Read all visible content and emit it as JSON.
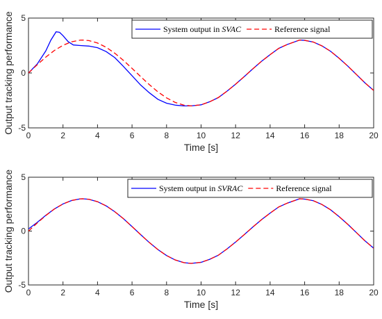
{
  "chart_data": [
    {
      "type": "line",
      "xlabel": "Time [s]",
      "ylabel": "Output tracking performance",
      "xlim": [
        0,
        20
      ],
      "ylim": [
        -5,
        5
      ],
      "xticks": [
        "0",
        "2",
        "4",
        "6",
        "8",
        "10",
        "12",
        "14",
        "16",
        "18",
        "20"
      ],
      "yticks": [
        "-5",
        "0",
        "5"
      ],
      "grid": false,
      "legend_position": "top-right",
      "series": [
        {
          "name": "System output in SVAC",
          "legend_prefix": "System output in ",
          "legend_italic": "SVAC",
          "color": "#0000ff",
          "style": "solid",
          "x": [
            0,
            0.5,
            1.0,
            1.3,
            1.6,
            1.8,
            2.0,
            2.3,
            2.6,
            3.0,
            3.5,
            4.0,
            4.5,
            5.0,
            5.5,
            6.0,
            6.5,
            7.0,
            7.5,
            8.0,
            8.5,
            9.0,
            9.42,
            10.0,
            10.5,
            11.0,
            11.5,
            12.0,
            12.5,
            13.0,
            13.5,
            14.0,
            14.5,
            15.0,
            15.71,
            16.0,
            16.5,
            17.0,
            17.5,
            18.0,
            18.5,
            19.0,
            19.5,
            20.0
          ],
          "y": [
            0.0,
            0.8,
            2.0,
            3.0,
            3.75,
            3.7,
            3.4,
            2.85,
            2.55,
            2.5,
            2.45,
            2.3,
            1.95,
            1.4,
            0.6,
            -0.25,
            -1.1,
            -1.8,
            -2.4,
            -2.75,
            -2.93,
            -3.0,
            -3.0,
            -2.9,
            -2.62,
            -2.24,
            -1.66,
            -1.02,
            -0.33,
            0.38,
            1.06,
            1.67,
            2.24,
            2.6,
            3.0,
            2.97,
            2.82,
            2.47,
            1.98,
            1.34,
            0.63,
            -0.14,
            -0.91,
            -1.59
          ]
        },
        {
          "name": "Reference signal",
          "color": "#ff0000",
          "style": "dashed",
          "x": [
            0,
            0.5,
            1.0,
            1.5,
            2.0,
            2.5,
            3.0,
            3.14,
            3.5,
            4.0,
            4.5,
            5.0,
            5.5,
            6.0,
            6.5,
            7.0,
            7.5,
            8.0,
            8.5,
            9.0,
            9.42,
            10.0,
            10.5,
            11.0,
            11.5,
            12.0,
            12.5,
            13.0,
            13.5,
            14.0,
            14.5,
            15.0,
            15.71,
            16.0,
            16.5,
            17.0,
            17.5,
            18.0,
            18.5,
            19.0,
            19.5,
            20.0
          ],
          "y": [
            0.0,
            0.74,
            1.44,
            2.05,
            2.52,
            2.84,
            2.99,
            3.0,
            2.95,
            2.73,
            2.34,
            1.8,
            1.15,
            0.42,
            -0.33,
            -1.06,
            -1.72,
            -2.27,
            -2.68,
            -2.93,
            -3.0,
            -2.9,
            -2.62,
            -2.24,
            -1.66,
            -1.02,
            -0.33,
            0.38,
            1.06,
            1.67,
            2.24,
            2.6,
            3.0,
            2.97,
            2.82,
            2.47,
            1.98,
            1.34,
            0.63,
            -0.14,
            -0.91,
            -1.59
          ]
        }
      ]
    },
    {
      "type": "line",
      "xlabel": "Time [s]",
      "ylabel": "Output tracking performance",
      "xlim": [
        0,
        20
      ],
      "ylim": [
        -5,
        5
      ],
      "xticks": [
        "0",
        "2",
        "4",
        "6",
        "8",
        "10",
        "12",
        "14",
        "16",
        "18",
        "20"
      ],
      "yticks": [
        "-5",
        "0",
        "5"
      ],
      "grid": false,
      "legend_position": "top-right",
      "series": [
        {
          "name": "System output in SVRAC",
          "legend_prefix": "System output in ",
          "legend_italic": "SVRAC",
          "color": "#0000ff",
          "style": "solid",
          "x": [
            0,
            0.5,
            1.0,
            1.5,
            2.0,
            2.5,
            3.0,
            3.14,
            3.5,
            4.0,
            4.5,
            5.0,
            5.5,
            6.0,
            6.5,
            7.0,
            7.5,
            8.0,
            8.5,
            9.0,
            9.42,
            10.0,
            10.5,
            11.0,
            11.5,
            12.0,
            12.5,
            13.0,
            13.5,
            14.0,
            14.5,
            15.0,
            15.71,
            16.0,
            16.5,
            17.0,
            17.5,
            18.0,
            18.5,
            19.0,
            19.5,
            20.0
          ],
          "y": [
            0.2,
            0.8,
            1.46,
            2.05,
            2.52,
            2.84,
            2.99,
            3.0,
            2.95,
            2.73,
            2.34,
            1.8,
            1.15,
            0.42,
            -0.33,
            -1.06,
            -1.72,
            -2.27,
            -2.68,
            -2.93,
            -3.0,
            -2.9,
            -2.62,
            -2.24,
            -1.66,
            -1.02,
            -0.33,
            0.38,
            1.06,
            1.67,
            2.24,
            2.6,
            3.0,
            2.97,
            2.82,
            2.47,
            1.98,
            1.34,
            0.63,
            -0.14,
            -0.91,
            -1.59
          ]
        },
        {
          "name": "Reference signal",
          "color": "#ff0000",
          "style": "dashed",
          "x": [
            0,
            0.5,
            1.0,
            1.5,
            2.0,
            2.5,
            3.0,
            3.14,
            3.5,
            4.0,
            4.5,
            5.0,
            5.5,
            6.0,
            6.5,
            7.0,
            7.5,
            8.0,
            8.5,
            9.0,
            9.42,
            10.0,
            10.5,
            11.0,
            11.5,
            12.0,
            12.5,
            13.0,
            13.5,
            14.0,
            14.5,
            15.0,
            15.71,
            16.0,
            16.5,
            17.0,
            17.5,
            18.0,
            18.5,
            19.0,
            19.5,
            20.0
          ],
          "y": [
            0.0,
            0.74,
            1.44,
            2.05,
            2.52,
            2.84,
            2.99,
            3.0,
            2.95,
            2.73,
            2.34,
            1.8,
            1.15,
            0.42,
            -0.33,
            -1.06,
            -1.72,
            -2.27,
            -2.68,
            -2.93,
            -3.0,
            -2.9,
            -2.62,
            -2.24,
            -1.66,
            -1.02,
            -0.33,
            0.38,
            1.06,
            1.67,
            2.24,
            2.6,
            3.0,
            2.97,
            2.82,
            2.47,
            1.98,
            1.34,
            0.63,
            -0.14,
            -0.91,
            -1.59
          ]
        }
      ]
    }
  ]
}
